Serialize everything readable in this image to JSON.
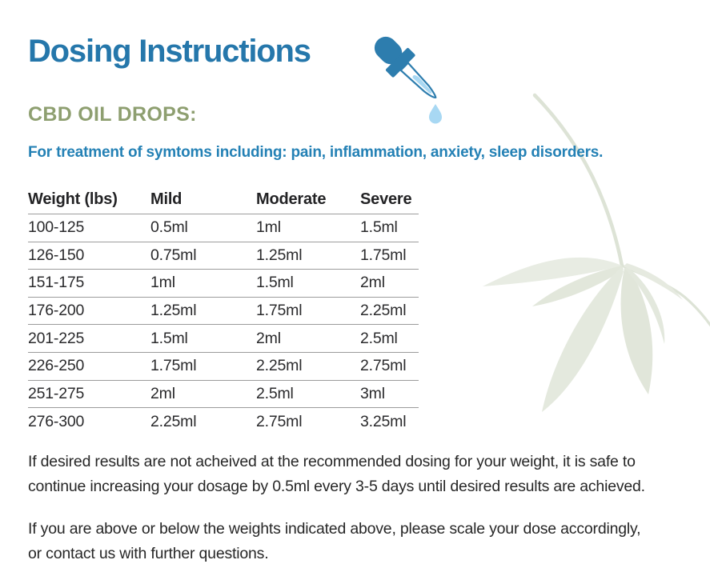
{
  "page": {
    "title": "Dosing Instructions",
    "section_heading": "CBD OIL DROPS:",
    "subtitle": "For treatment of symtoms including: pain, inflammation, anxiety, sleep disorders."
  },
  "icons": {
    "dropper": "dropper-icon",
    "leaf": "leaf-watermark"
  },
  "colors": {
    "title_blue": "#2577ab",
    "subtitle_blue": "#2481b5",
    "heading_olive": "#8e9f70",
    "body_text": "#272727",
    "table_rule": "#9c9c9c",
    "dropper_blue": "#2d7dae",
    "dropper_light_blue": "#a8d8f3",
    "leaf_green": "#e4e8de"
  },
  "table": {
    "columns": [
      "Weight (lbs)",
      "Mild",
      "Moderate",
      "Severe"
    ],
    "rows": [
      [
        "100-125",
        "0.5ml",
        "1ml",
        "1.5ml"
      ],
      [
        "126-150",
        "0.75ml",
        "1.25ml",
        "1.75ml"
      ],
      [
        "151-175",
        "1ml",
        "1.5ml",
        "2ml"
      ],
      [
        "176-200",
        "1.25ml",
        "1.75ml",
        "2.25ml"
      ],
      [
        "201-225",
        "1.5ml",
        "2ml",
        "2.5ml"
      ],
      [
        "226-250",
        "1.75ml",
        "2.25ml",
        "2.75ml"
      ],
      [
        "251-275",
        "2ml",
        "2.5ml",
        "3ml"
      ],
      [
        "276-300",
        "2.25ml",
        "2.75ml",
        "3.25ml"
      ]
    ]
  },
  "paragraphs": [
    {
      "lines": [
        "If desired results are not acheived at the recommended dosing for your weight, it is safe to",
        "continue increasing your dosage by 0.5ml every 3-5 days until desired results are achieved."
      ]
    },
    {
      "lines": [
        "If you are above or below the weights indicated above, please scale your dose accordingly,",
        "or contact us with further questions."
      ]
    }
  ]
}
